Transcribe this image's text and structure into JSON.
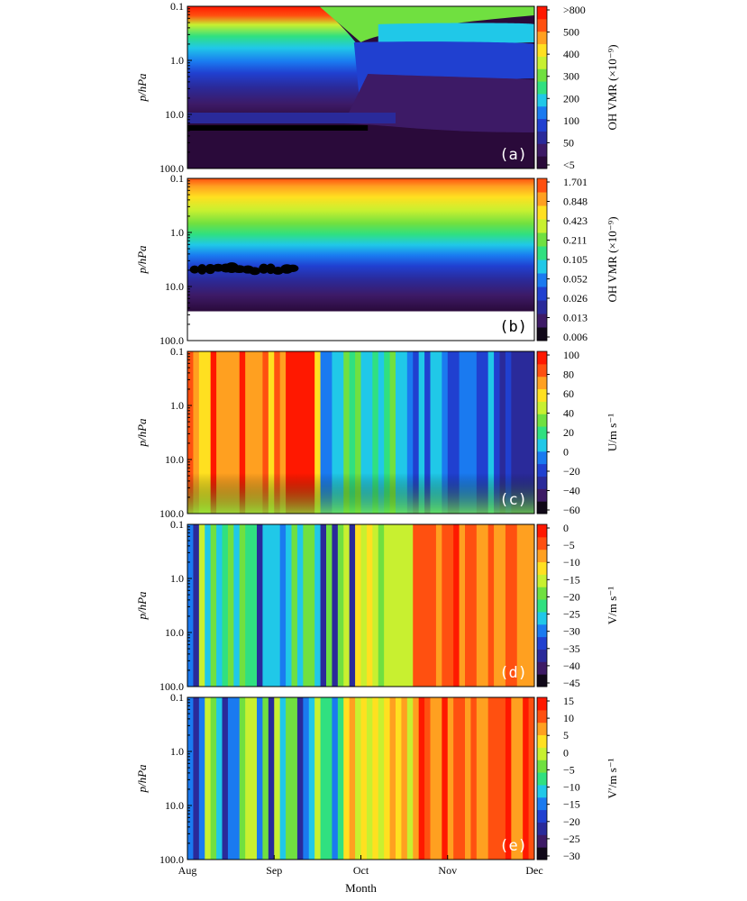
{
  "chart_data": [
    {
      "type": "heatmap",
      "panel_label": "(a)",
      "ylabel": "p/hPa",
      "yticks": [
        "0.1",
        "1.0",
        "10.0",
        "100.0"
      ],
      "colorbar_label": "OH VMR (×10⁻⁹)",
      "colorbar_ticks": [
        ">800",
        "500",
        "400",
        "300",
        "200",
        "100",
        "50",
        "<5"
      ],
      "palette": [
        "#2a0a3a",
        "#3d1a66",
        "#2a2a9a",
        "#2040d0",
        "#1a7af0",
        "#20c8e8",
        "#30e080",
        "#70e040",
        "#c8f030",
        "#ffe020",
        "#ffa020",
        "#ff5010",
        "#ff1800"
      ]
    },
    {
      "type": "heatmap",
      "panel_label": "(b)",
      "ylabel": "p/hPa",
      "yticks": [
        "0.1",
        "1.0",
        "10.0",
        "100.0"
      ],
      "colorbar_label": "OH VMR (×10⁻⁹)",
      "colorbar_ticks": [
        "1.701",
        "0.848",
        "0.423",
        "0.211",
        "0.105",
        "0.052",
        "0.026",
        "0.013",
        "0.006"
      ],
      "palette": [
        "#100818",
        "#3d1a66",
        "#2a2a9a",
        "#2040d0",
        "#1a7af0",
        "#20c8e8",
        "#30e080",
        "#70e040",
        "#c8f030",
        "#ffe020",
        "#ffa020",
        "#ff5010"
      ]
    },
    {
      "type": "heatmap",
      "panel_label": "(c)",
      "ylabel": "p/hPa",
      "yticks": [
        "0.1",
        "1.0",
        "10.0",
        "100.0"
      ],
      "colorbar_label": "U/m s⁻¹",
      "colorbar_ticks": [
        "100",
        "80",
        "60",
        "40",
        "20",
        "0",
        "−20",
        "−40",
        "−60"
      ],
      "palette": [
        "#100818",
        "#3d1a66",
        "#2a2a9a",
        "#2040d0",
        "#1a7af0",
        "#20c8e8",
        "#30e080",
        "#70e040",
        "#c8f030",
        "#ffe020",
        "#ffa020",
        "#ff5010",
        "#ff1800"
      ]
    },
    {
      "type": "heatmap",
      "panel_label": "(d)",
      "ylabel": "p/hPa",
      "yticks": [
        "0.1",
        "1.0",
        "10.0",
        "100.0"
      ],
      "colorbar_label": "V/m s⁻¹",
      "colorbar_ticks": [
        "0",
        "−5",
        "−10",
        "−15",
        "−20",
        "−25",
        "−30",
        "−35",
        "−40",
        "−45"
      ],
      "palette": [
        "#100818",
        "#3d1a66",
        "#2a2a9a",
        "#2040d0",
        "#1a7af0",
        "#20c8e8",
        "#30e080",
        "#70e040",
        "#c8f030",
        "#ffe020",
        "#ffa020",
        "#ff5010",
        "#ff1800"
      ]
    },
    {
      "type": "heatmap",
      "panel_label": "(e)",
      "ylabel": "p/hPa",
      "yticks": [
        "0.1",
        "1.0",
        "10.0",
        "100.0"
      ],
      "colorbar_label": "V′/m s⁻¹",
      "colorbar_ticks": [
        "15",
        "10",
        "5",
        "0",
        "−5",
        "−10",
        "−15",
        "−20",
        "−25",
        "−30"
      ],
      "palette": [
        "#100818",
        "#3d1a66",
        "#2a2a9a",
        "#2040d0",
        "#1a7af0",
        "#20c8e8",
        "#30e080",
        "#70e040",
        "#c8f030",
        "#ffe020",
        "#ffa020",
        "#ff5010",
        "#ff1800"
      ]
    }
  ],
  "xaxis": {
    "ticks": [
      "Aug",
      "Sep",
      "Oct",
      "Nov",
      "Dec"
    ],
    "label": "Month"
  }
}
